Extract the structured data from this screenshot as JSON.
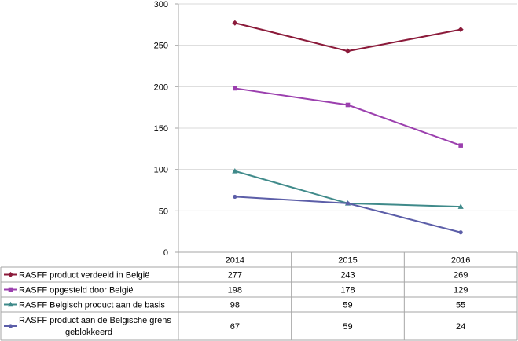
{
  "chart_data": {
    "type": "line",
    "categories": [
      "2014",
      "2015",
      "2016"
    ],
    "ylim": [
      0,
      300
    ],
    "yticks": [
      0,
      50,
      100,
      150,
      200,
      250,
      300
    ],
    "grid": true,
    "legend": "data-table",
    "series": [
      {
        "name": "RASFF product verdeeld in België",
        "name_lines": [
          "RASFF product verdeeld in België"
        ],
        "values": [
          277,
          243,
          269
        ],
        "color": "#8b1a3a",
        "marker": "diamond"
      },
      {
        "name": "RASFF opgesteld door België",
        "name_lines": [
          "RASFF opgesteld door België"
        ],
        "values": [
          198,
          178,
          129
        ],
        "color": "#9b3fae",
        "marker": "square"
      },
      {
        "name": "RASFF Belgisch product aan de basis",
        "name_lines": [
          "RASFF Belgisch product aan de basis"
        ],
        "values": [
          98,
          59,
          55
        ],
        "color": "#3f8a8a",
        "marker": "triangle"
      },
      {
        "name": "RASFF product aan de Belgische grens geblokkeerd",
        "name_lines": [
          "RASFF product aan de Belgische grens",
          "geblokkeerd"
        ],
        "values": [
          67,
          59,
          24
        ],
        "color": "#5c5ea8",
        "marker": "circle"
      }
    ]
  }
}
